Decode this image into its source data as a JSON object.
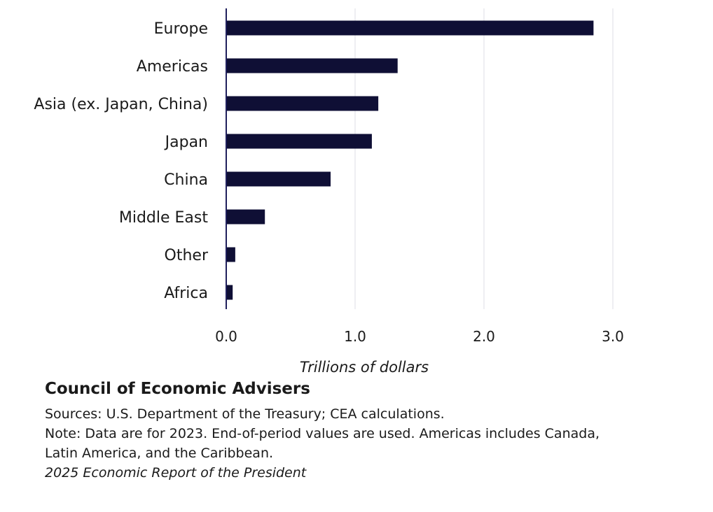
{
  "chart_data": {
    "type": "bar",
    "orientation": "horizontal",
    "categories": [
      "Europe",
      "Americas",
      "Asia (ex. Japan, China)",
      "Japan",
      "China",
      "Middle East",
      "Other",
      "Africa"
    ],
    "values": [
      2.85,
      1.33,
      1.18,
      1.13,
      0.81,
      0.3,
      0.07,
      0.05
    ],
    "xlabel": "Trillions of dollars",
    "xlim": [
      0,
      3.2
    ],
    "xticks": [
      0.0,
      1.0,
      2.0,
      3.0
    ],
    "xtick_labels": [
      "0.0",
      "1.0",
      "2.0",
      "3.0"
    ],
    "grid": true,
    "bar_color": "#0f0f35",
    "axis_color": "#1f1f5c",
    "grid_color": "#dcdce6"
  },
  "footer": {
    "organization": "Council of Economic Advisers",
    "sources": "Sources: U.S. Department of the Treasury; CEA calculations.",
    "note_line1": "Note: Data are for 2023. End-of-period values are used. Americas includes Canada,",
    "note_line2": "Latin America, and the Caribbean.",
    "report": "2025 Economic Report of the President"
  }
}
